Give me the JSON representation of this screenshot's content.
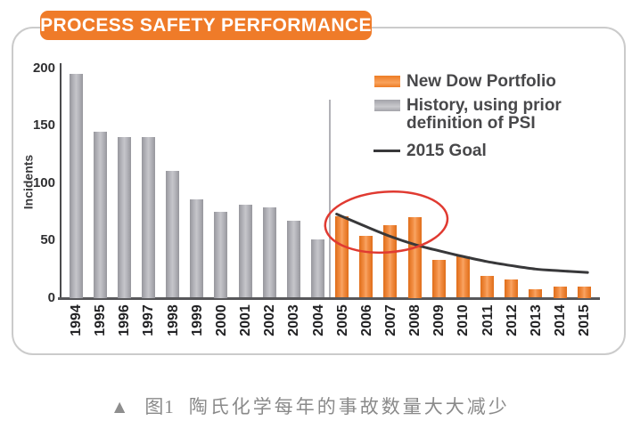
{
  "title": "PROCESS SAFETY PERFORMANCE",
  "chart_data": {
    "type": "bar",
    "title": "PROCESS SAFETY PERFORMANCE",
    "xlabel": "",
    "ylabel": "Incidents",
    "ylim": [
      0,
      200
    ],
    "yticks": [
      0,
      50,
      100,
      150,
      200
    ],
    "grid": false,
    "legend_position": "top-right",
    "categories": [
      "1994",
      "1995",
      "1996",
      "1997",
      "1998",
      "1999",
      "2000",
      "2001",
      "2002",
      "2003",
      "2004",
      "2005",
      "2006",
      "2007",
      "2008",
      "2009",
      "2010",
      "2011",
      "2012",
      "2013",
      "2014",
      "2015"
    ],
    "series": [
      {
        "name": "History, using prior definition of PSI",
        "color": "#ababb1",
        "values": [
          195,
          145,
          140,
          140,
          111,
          86,
          75,
          81,
          79,
          67,
          51,
          null,
          null,
          null,
          null,
          null,
          null,
          null,
          null,
          null,
          null,
          null
        ]
      },
      {
        "name": "New Dow Portfolio",
        "color": "#f08232",
        "values": [
          null,
          null,
          null,
          null,
          null,
          null,
          null,
          null,
          null,
          null,
          null,
          71,
          54,
          63,
          70,
          33,
          36,
          19,
          16,
          7,
          10,
          10
        ]
      }
    ],
    "goal_line": {
      "name": "2015 Goal",
      "color": "#38383a",
      "x": [
        "2005",
        "2006",
        "2007",
        "2008",
        "2009",
        "2010",
        "2011",
        "2012",
        "2013",
        "2014",
        "2015"
      ],
      "values": [
        73,
        62,
        53.5,
        46.5,
        41,
        36,
        31.5,
        28,
        25,
        23.5,
        22
      ]
    },
    "annotation": {
      "shape": "ellipse",
      "circled_categories": [
        "2005",
        "2008"
      ],
      "color": "#e03a31"
    },
    "divider_between": [
      "2004",
      "2005"
    ]
  },
  "legend": {
    "items": [
      {
        "label": "New Dow Portfolio"
      },
      {
        "line1": "History, using prior",
        "line2": "definition of PSI"
      },
      {
        "label": "2015 Goal"
      }
    ]
  },
  "caption": {
    "marker": "▲",
    "figure_label": "图1",
    "text": "陶氏化学每年的事故数量大大减少"
  }
}
